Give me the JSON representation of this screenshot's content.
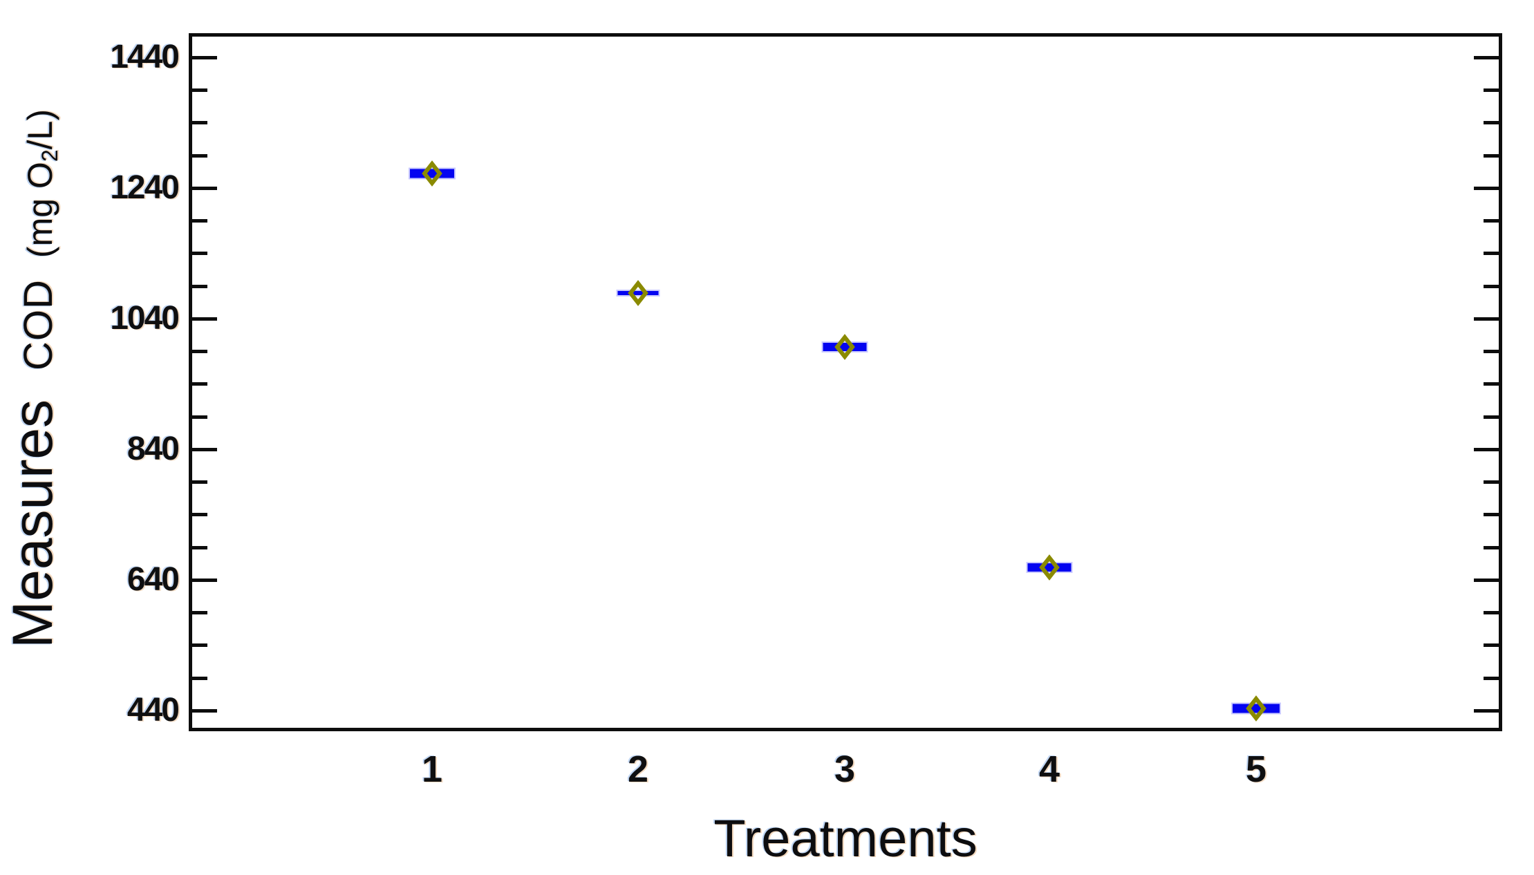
{
  "chart_data": {
    "type": "box",
    "title": "",
    "xlabel": "Treatments",
    "ylabel": "Measures COD (mg O₂/L)",
    "ylabel_words": {
      "measures": "Measures",
      "cod": "COD",
      "unit_pre": "(mg O",
      "unit_sub": "2",
      "unit_post": "/L)"
    },
    "categories": [
      "1",
      "2",
      "3",
      "4",
      "5"
    ],
    "series": [
      {
        "treatment": "1",
        "box_low": 1255,
        "box_high": 1269,
        "mean": 1262
      },
      {
        "treatment": "2",
        "box_low": 1077,
        "box_high": 1081,
        "mean": 1079
      },
      {
        "treatment": "3",
        "box_low": 990,
        "box_high": 1003,
        "mean": 996
      },
      {
        "treatment": "4",
        "box_low": 652,
        "box_high": 665,
        "mean": 659
      },
      {
        "treatment": "5",
        "box_low": 436,
        "box_high": 450,
        "mean": 443
      }
    ],
    "y_major_ticks": [
      1440,
      1240,
      1040,
      840,
      640,
      440
    ],
    "y_minor_tick_step": 50,
    "ylim": [
      408,
      1477
    ],
    "grid": false,
    "legend": null,
    "marker_meaning": "blue bar = collapsed box (IQR), olive open diamond = mean",
    "colors": {
      "box_fill": "#0404f0",
      "box_edge": "#9a9aff",
      "mean_marker": "#8a8a00",
      "axis": "#0d0d0d",
      "text": "#111111",
      "background": "#ffffff"
    }
  }
}
